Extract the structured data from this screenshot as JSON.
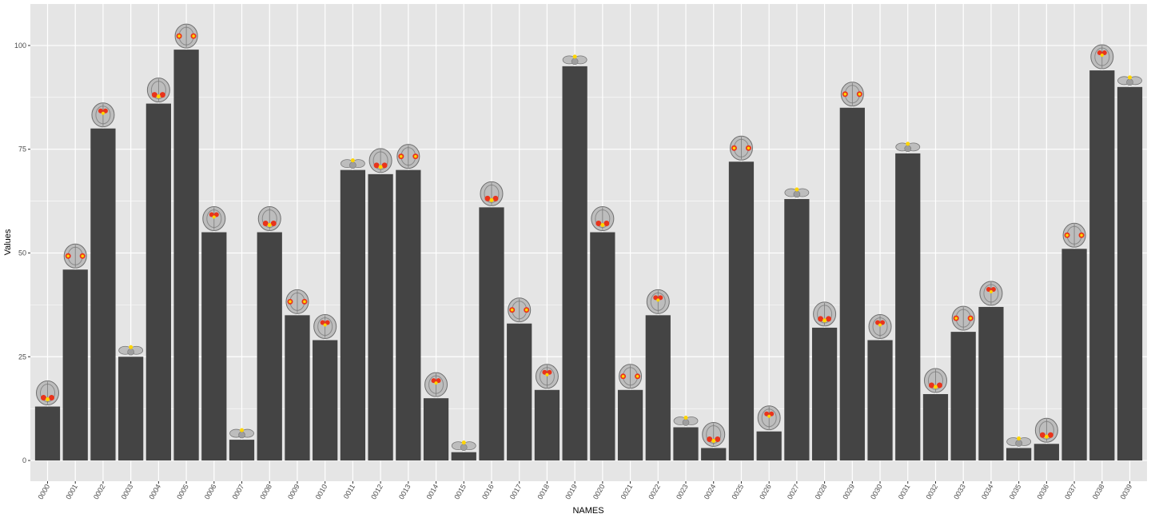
{
  "chart_data": {
    "type": "bar",
    "xlabel": "NAMES",
    "ylabel": "Values",
    "ylim": [
      -5,
      110
    ],
    "y_ticks": [
      0,
      25,
      50,
      75,
      100
    ],
    "grid": true,
    "colors": {
      "panel": "#e5e5e5",
      "grid": "#ffffff",
      "bar": "#444444",
      "icon_brain": "#bdbdbd",
      "icon_activation_red": "#e8341c",
      "icon_activation_yellow": "#ffd500"
    },
    "bar_icon": "brain-slice-icon",
    "categories": [
      "0000",
      "0001",
      "0002",
      "0003",
      "0004",
      "0005",
      "0006",
      "0007",
      "0008",
      "0009",
      "0010",
      "0011",
      "0012",
      "0013",
      "0014",
      "0015",
      "0016",
      "0017",
      "0018",
      "0019",
      "0020",
      "0021",
      "0022",
      "0023",
      "0024",
      "0025",
      "0026",
      "0027",
      "0028",
      "0029",
      "0030",
      "0031",
      "0032",
      "0033",
      "0034",
      "0035",
      "0036",
      "0037",
      "0038",
      "0039"
    ],
    "values": [
      13,
      46,
      80,
      25,
      86,
      99,
      55,
      5,
      55,
      35,
      29,
      70,
      69,
      70,
      15,
      2,
      61,
      33,
      17,
      95,
      55,
      17,
      35,
      8,
      3,
      72,
      7,
      63,
      32,
      85,
      29,
      74,
      16,
      31,
      37,
      3,
      4,
      51,
      94,
      90
    ]
  }
}
